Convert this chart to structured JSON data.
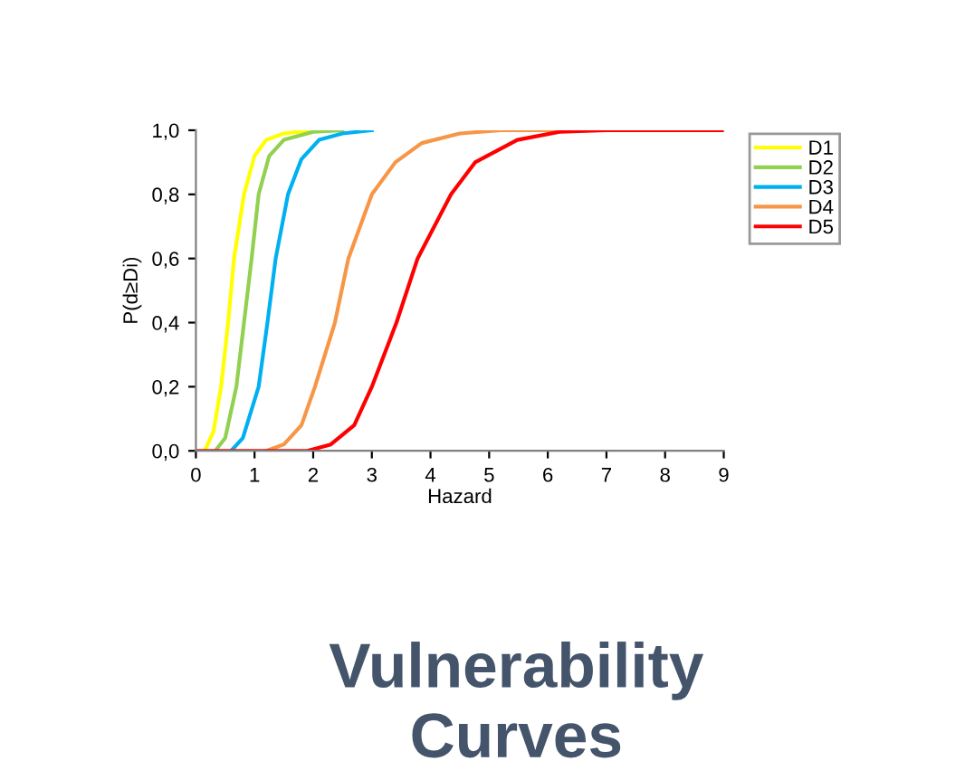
{
  "chart_data": {
    "type": "line",
    "title": "Vulnerability Curves",
    "xlabel": "Hazard",
    "ylabel": "P(d≥Di)",
    "xlim": [
      0,
      9
    ],
    "xticks": [
      0,
      1,
      2,
      3,
      4,
      5,
      6,
      7,
      8,
      9
    ],
    "ylim": [
      0,
      1
    ],
    "yticks": [
      {
        "value": 0,
        "label": "0,0"
      },
      {
        "value": 0.2,
        "label": "0,2"
      },
      {
        "value": 0.4,
        "label": "0,4"
      },
      {
        "value": 0.6,
        "label": "0,6"
      },
      {
        "value": 0.8,
        "label": "0,8"
      },
      {
        "value": 1,
        "label": "1,0"
      }
    ],
    "grid": false,
    "legend": "top right",
    "marker": "none",
    "line_style": "solid",
    "series": [
      {
        "name": "D1",
        "color": "#ffff00",
        "x": [
          0.15,
          0.3,
          0.43,
          0.55,
          0.65,
          0.82,
          1.0,
          1.2,
          1.5,
          2
        ],
        "values": [
          0,
          0.06,
          0.2,
          0.4,
          0.6,
          0.8,
          0.92,
          0.97,
          0.99,
          1
        ]
      },
      {
        "name": "D2",
        "color": "#92d050",
        "x": [
          0.33,
          0.5,
          0.69,
          0.82,
          0.95,
          1.07,
          1.25,
          1.5,
          2,
          2.5
        ],
        "values": [
          0,
          0.04,
          0.2,
          0.4,
          0.6,
          0.8,
          0.92,
          0.97,
          0.995,
          1
        ]
      },
      {
        "name": "D3",
        "color": "#00b0f0",
        "x": [
          0.6,
          0.8,
          1.07,
          1.22,
          1.36,
          1.57,
          1.8,
          2.1,
          2.5,
          3
        ],
        "values": [
          0,
          0.04,
          0.2,
          0.4,
          0.6,
          0.8,
          0.91,
          0.97,
          0.99,
          1
        ]
      },
      {
        "name": "D4",
        "color": "#f79646",
        "x": [
          1.2,
          1.5,
          1.8,
          2.03,
          2.37,
          2.6,
          3.0,
          3.4,
          3.85,
          4.5,
          5.2,
          9
        ],
        "values": [
          0,
          0.02,
          0.08,
          0.2,
          0.4,
          0.6,
          0.8,
          0.9,
          0.96,
          0.99,
          1,
          1
        ]
      },
      {
        "name": "D5",
        "color": "#ff0000",
        "x": [
          0,
          1.9,
          2.3,
          2.7,
          3.0,
          3.42,
          3.78,
          4.35,
          4.76,
          5.48,
          6.2,
          7,
          9
        ],
        "values": [
          0,
          0,
          0.02,
          0.08,
          0.2,
          0.4,
          0.6,
          0.8,
          0.9,
          0.97,
          0.995,
          1,
          1
        ]
      }
    ]
  }
}
